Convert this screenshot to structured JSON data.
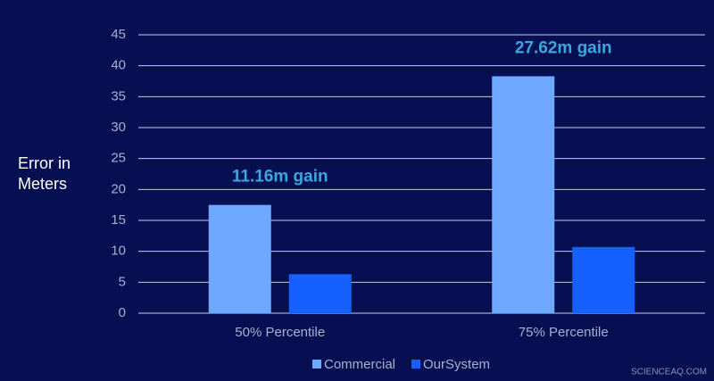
{
  "chart_data": {
    "type": "bar",
    "ylabel": "Error in Meters",
    "categories": [
      "50% Percentile",
      "75% Percentile"
    ],
    "series": [
      {
        "name": "Commercial",
        "color": "#6fa8ff",
        "values": [
          17.5,
          38.3
        ]
      },
      {
        "name": "OurSystem",
        "color": "#1560ff",
        "values": [
          6.3,
          10.7
        ]
      }
    ],
    "annotations": [
      "11.16m gain",
      "27.62m gain"
    ],
    "ylim": [
      0,
      45
    ],
    "yticks": [
      0,
      5,
      10,
      15,
      20,
      25,
      30,
      35,
      40,
      45
    ],
    "grid": true,
    "legend": "bottom",
    "watermark": "SCIENCEAQ.COM"
  }
}
